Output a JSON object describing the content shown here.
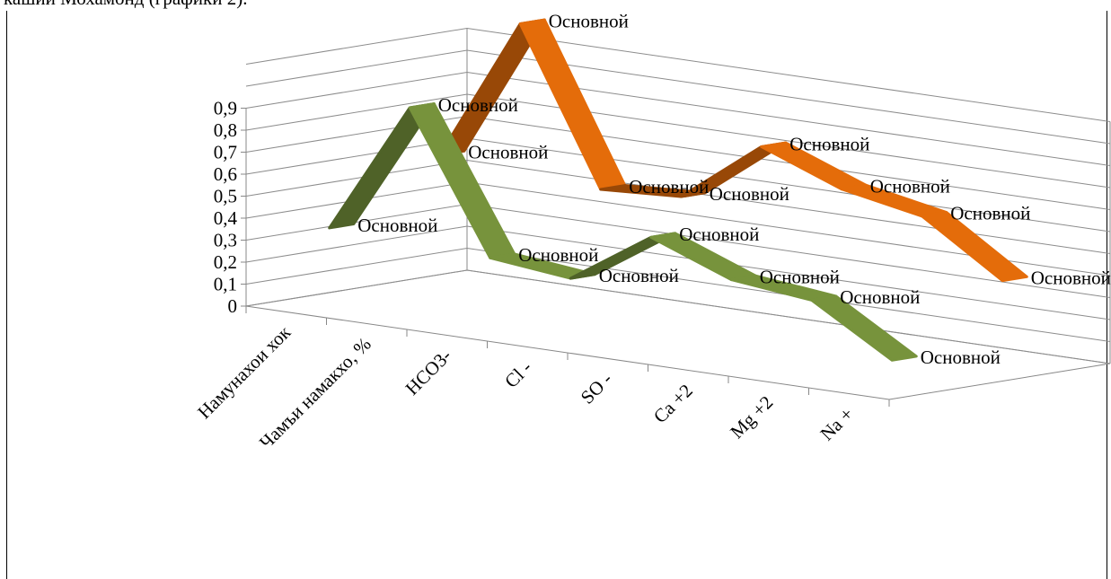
{
  "page": {
    "top_text": "кашии Мохамонд (графики 2)."
  },
  "chart_data": {
    "type": "line",
    "title": "",
    "xlabel": "",
    "ylabel": "",
    "ylim": [
      0,
      0.9
    ],
    "yticks": [
      "0",
      "0,1",
      "0,2",
      "0,3",
      "0,4",
      "0,5",
      "0,6",
      "0,7",
      "0,8",
      "0,9"
    ],
    "categories": [
      "Намунахои хок",
      "Чамъи намакхо, %",
      "HCO3-",
      "Cl -",
      "SO -",
      "Ca +2",
      "Mg +2",
      "Na +"
    ],
    "grid": true,
    "view": "3d",
    "series": [
      {
        "color": "#77933c",
        "darkColor": "#4f6228",
        "values": [
          0.35,
          0.95,
          0.32,
          0.28,
          0.52,
          0.38,
          0.34,
          0.12
        ],
        "labels": [
          "Основной",
          "Основной",
          "Основной",
          "Основной",
          "Основной",
          "Основной",
          "Основной",
          "Основной"
        ]
      },
      {
        "color": "#e46c0a",
        "darkColor": "#984807",
        "values": [
          0.6,
          1.25,
          0.55,
          0.57,
          0.85,
          0.71,
          0.64,
          0.4
        ],
        "labels": [
          "Основной",
          "Основной",
          "Основной",
          "Основной",
          "Основной",
          "Основной",
          "Основной",
          "Основной"
        ]
      }
    ]
  }
}
